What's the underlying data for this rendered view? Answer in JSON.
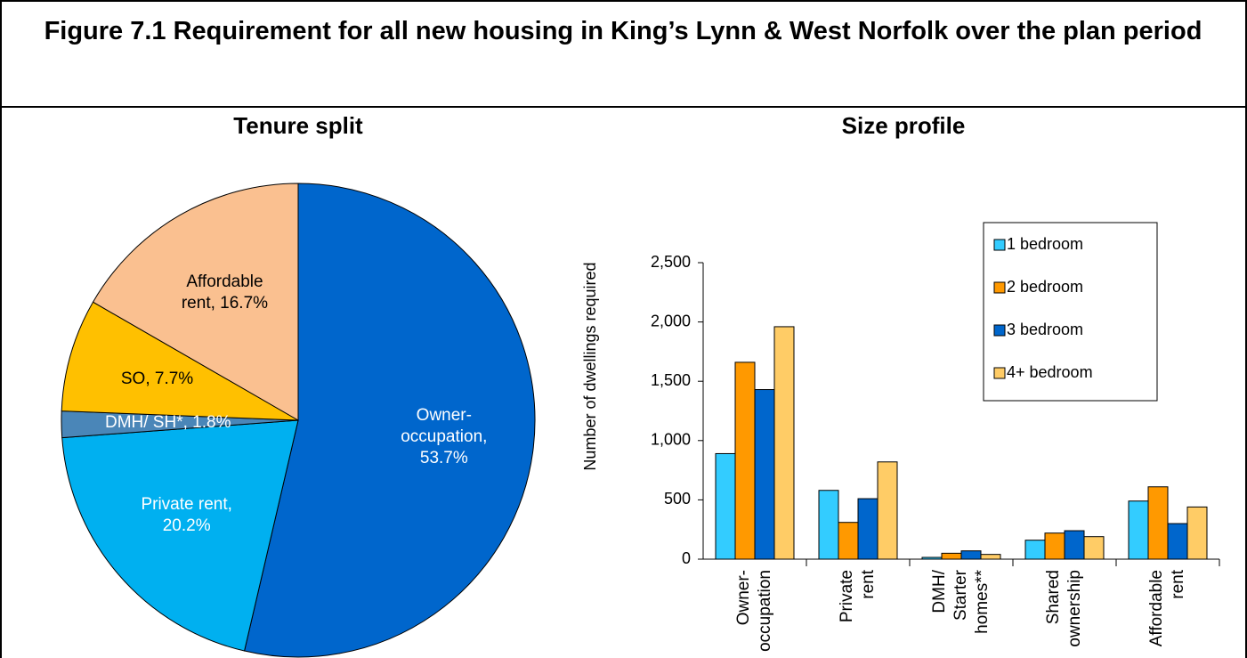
{
  "title": "Figure 7.1 Requirement for all new housing in King’s Lynn & West Norfolk over the plan period",
  "chart_data": [
    {
      "type": "pie",
      "title": "Tenure split",
      "categories": [
        "Owner-occupation",
        "Private rent",
        "DMH/ SH*",
        "SO",
        "Affordable rent"
      ],
      "values": [
        53.7,
        20.2,
        1.8,
        7.7,
        16.7
      ],
      "value_labels": [
        "53.7%",
        "20.2%",
        "1.8%",
        "7.7%",
        "16.7%"
      ],
      "colors": [
        "#0066cc",
        "#00b0f0",
        "#4a86b8",
        "#ffc000",
        "#fac090"
      ]
    },
    {
      "type": "bar",
      "title": "Size profile",
      "ylabel": "Number of dwellings required",
      "categories": [
        "Owner-occupation",
        "Private rent",
        "DMH/ Starter homes**",
        "Shared ownership",
        "Affordable rent"
      ],
      "series": [
        {
          "name": "1 bedroom",
          "color": "#33ccff",
          "values": [
            890,
            580,
            15,
            160,
            490
          ]
        },
        {
          "name": "2 bedroom",
          "color": "#ff9900",
          "values": [
            1660,
            310,
            50,
            220,
            610
          ]
        },
        {
          "name": "3 bedroom",
          "color": "#0066cc",
          "values": [
            1430,
            510,
            70,
            240,
            300
          ]
        },
        {
          "name": "4+ bedroom",
          "color": "#ffcc66",
          "values": [
            1960,
            820,
            40,
            190,
            440
          ]
        }
      ],
      "ylim": [
        0,
        2500
      ],
      "yticks": [
        0,
        {
          "value": 500,
          "label": "500"
        },
        {
          "value": 1000,
          "label": "1,000"
        },
        {
          "value": 1500,
          "label": "1,500"
        },
        {
          "value": 2000,
          "label": "2,000"
        },
        {
          "value": 2500,
          "label": "2,500"
        }
      ],
      "legend": "upper right"
    }
  ]
}
